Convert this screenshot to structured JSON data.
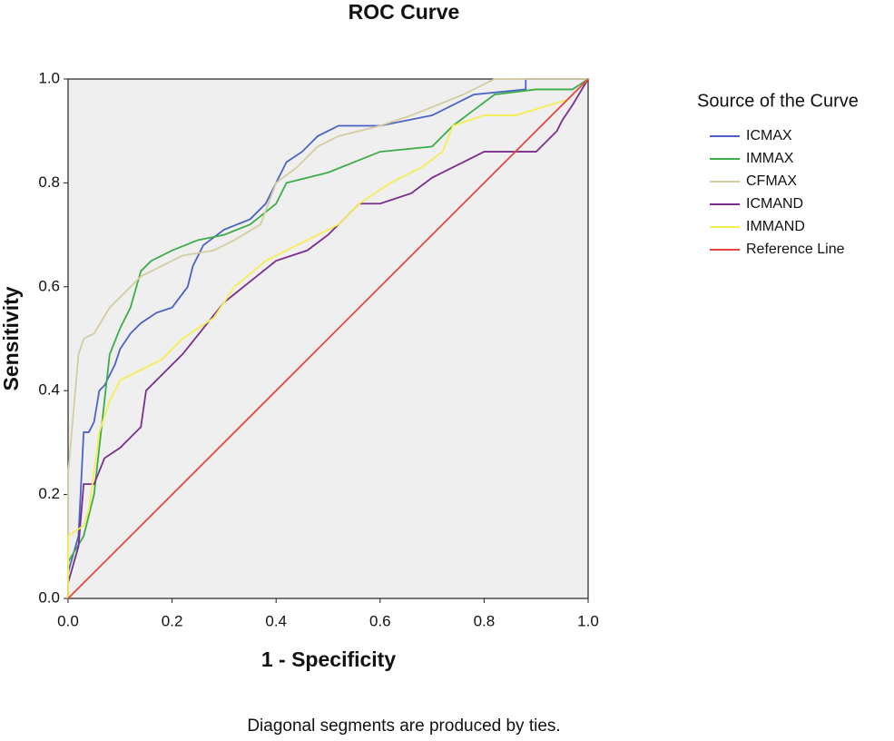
{
  "chart_data": {
    "type": "line",
    "title": "ROC Curve",
    "x_label": "1 - Specificity",
    "y_label": "Sensitivity",
    "legend_title": "Source of the Curve",
    "footnote": "Diagonal segments are produced by ties.",
    "xlim": [
      0,
      1
    ],
    "ylim": [
      0,
      1
    ],
    "xticks": [
      {
        "value": 0,
        "label": "0.0"
      },
      0.2,
      0.4,
      0.6,
      0.8,
      {
        "value": 1,
        "label": "1.0"
      }
    ],
    "yticks": [
      {
        "value": 0,
        "label": "0.0"
      },
      0.2,
      0.4,
      0.6,
      0.8,
      {
        "value": 1,
        "label": "1.0"
      }
    ],
    "grid": false,
    "legend_position": "right",
    "series": [
      {
        "name": "ICMAX",
        "color": "#4a63c6",
        "x": [
          0,
          0,
          0.02,
          0.03,
          0.04,
          0.05,
          0.06,
          0.07,
          0.09,
          0.1,
          0.12,
          0.14,
          0.17,
          0.2,
          0.23,
          0.24,
          0.26,
          0.3,
          0.35,
          0.38,
          0.4,
          0.42,
          0.45,
          0.48,
          0.52,
          0.6,
          0.7,
          0.78,
          0.88,
          0.88,
          1.0
        ],
        "values": [
          0,
          0.05,
          0.12,
          0.32,
          0.32,
          0.34,
          0.4,
          0.41,
          0.45,
          0.48,
          0.51,
          0.53,
          0.55,
          0.56,
          0.6,
          0.64,
          0.68,
          0.71,
          0.73,
          0.76,
          0.8,
          0.84,
          0.86,
          0.89,
          0.91,
          0.91,
          0.93,
          0.97,
          0.98,
          1.0,
          1.0
        ]
      },
      {
        "name": "IMMAX",
        "color": "#3cad48",
        "x": [
          0,
          0,
          0.03,
          0.05,
          0.06,
          0.07,
          0.08,
          0.1,
          0.12,
          0.14,
          0.16,
          0.2,
          0.25,
          0.3,
          0.35,
          0.4,
          0.42,
          0.5,
          0.6,
          0.7,
          0.74,
          0.78,
          0.82,
          0.9,
          0.97,
          1.0
        ],
        "values": [
          0,
          0.07,
          0.12,
          0.2,
          0.29,
          0.38,
          0.47,
          0.52,
          0.56,
          0.63,
          0.65,
          0.67,
          0.69,
          0.7,
          0.72,
          0.76,
          0.8,
          0.82,
          0.86,
          0.87,
          0.91,
          0.94,
          0.97,
          0.98,
          0.98,
          1.0
        ]
      },
      {
        "name": "CFMAX",
        "color": "#d4cc9f",
        "x": [
          0,
          0,
          0.02,
          0.03,
          0.05,
          0.08,
          0.1,
          0.14,
          0.18,
          0.22,
          0.28,
          0.32,
          0.37,
          0.4,
          0.44,
          0.48,
          0.52,
          0.6,
          0.66,
          0.76,
          0.82,
          0.9,
          1.0
        ],
        "values": [
          0,
          0.24,
          0.47,
          0.5,
          0.51,
          0.56,
          0.58,
          0.62,
          0.64,
          0.66,
          0.67,
          0.69,
          0.72,
          0.8,
          0.83,
          0.87,
          0.89,
          0.91,
          0.93,
          0.97,
          1.0,
          1.0,
          1.0
        ]
      },
      {
        "name": "ICMAND",
        "color": "#7b2d8e",
        "x": [
          0,
          0,
          0.02,
          0.03,
          0.05,
          0.07,
          0.1,
          0.14,
          0.15,
          0.18,
          0.22,
          0.26,
          0.3,
          0.35,
          0.4,
          0.46,
          0.5,
          0.56,
          0.6,
          0.66,
          0.7,
          0.76,
          0.8,
          0.9,
          0.94,
          0.95,
          0.97,
          1.0
        ],
        "values": [
          0,
          0.03,
          0.1,
          0.22,
          0.22,
          0.27,
          0.29,
          0.33,
          0.4,
          0.43,
          0.47,
          0.52,
          0.57,
          0.61,
          0.65,
          0.67,
          0.7,
          0.76,
          0.76,
          0.78,
          0.81,
          0.84,
          0.86,
          0.86,
          0.9,
          0.92,
          0.95,
          1.0
        ]
      },
      {
        "name": "IMMAND",
        "color": "#f5ee52",
        "x": [
          0,
          0,
          0.03,
          0.04,
          0.06,
          0.08,
          0.1,
          0.14,
          0.18,
          0.22,
          0.28,
          0.32,
          0.38,
          0.44,
          0.52,
          0.56,
          0.62,
          0.68,
          0.72,
          0.74,
          0.8,
          0.86,
          0.96,
          1.0
        ],
        "values": [
          0,
          0.12,
          0.14,
          0.17,
          0.32,
          0.38,
          0.42,
          0.44,
          0.46,
          0.5,
          0.54,
          0.6,
          0.65,
          0.68,
          0.72,
          0.76,
          0.8,
          0.83,
          0.86,
          0.91,
          0.93,
          0.93,
          0.96,
          1.0
        ]
      },
      {
        "name": "Reference Line",
        "color": "#e7463f",
        "x": [
          0,
          1
        ],
        "values": [
          0,
          1
        ]
      }
    ]
  }
}
